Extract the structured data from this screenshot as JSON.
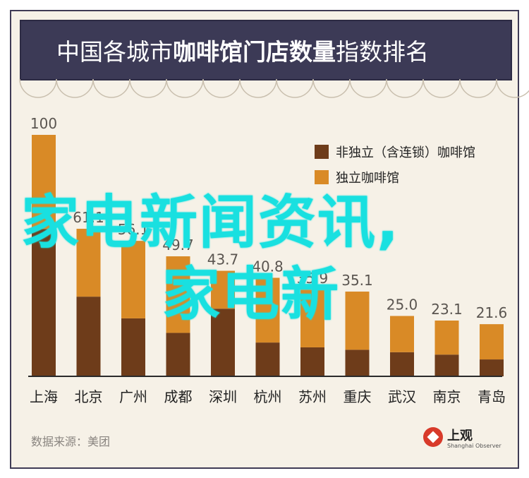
{
  "title": {
    "part1": "中国各城市",
    "part2": "咖啡馆门店数量",
    "part3": "指数排名"
  },
  "source": "数据来源：美团",
  "logo": {
    "name": "上观",
    "sub": "Shanghai Observer"
  },
  "watermark": {
    "line1": "家电新闻资讯,",
    "line2": "家电新"
  },
  "colors": {
    "chain": "#6e3c1a",
    "independent": "#d98a26",
    "axis": "#2b2b2b",
    "title_bg": "#3c3a56"
  },
  "chart_data": {
    "type": "bar",
    "stacked": true,
    "categories": [
      "上海",
      "北京",
      "广州",
      "成都",
      "深圳",
      "杭州",
      "苏州",
      "重庆",
      "武汉",
      "南京",
      "青岛"
    ],
    "totals": [
      100,
      61.1,
      56.1,
      49.7,
      43.7,
      40.8,
      35.9,
      35.1,
      25.0,
      23.1,
      21.6
    ],
    "total_labels": [
      "100",
      "61.1",
      "56.1",
      "49.7",
      "43.7",
      "40.8",
      "35.9",
      "35.1",
      "25.0",
      "23.1",
      "21.6"
    ],
    "series": [
      {
        "name": "非独立（含连锁）咖啡馆",
        "values": [
          61,
          33,
          24,
          18,
          28,
          14,
          12,
          11,
          10,
          9,
          7
        ]
      },
      {
        "name": "独立咖啡馆",
        "values": [
          39,
          28.1,
          32.1,
          31.7,
          15.7,
          26.8,
          23.9,
          24.1,
          15.0,
          14.1,
          14.6
        ]
      }
    ],
    "ylim": [
      0,
      100
    ],
    "legend_position": "top-right"
  }
}
